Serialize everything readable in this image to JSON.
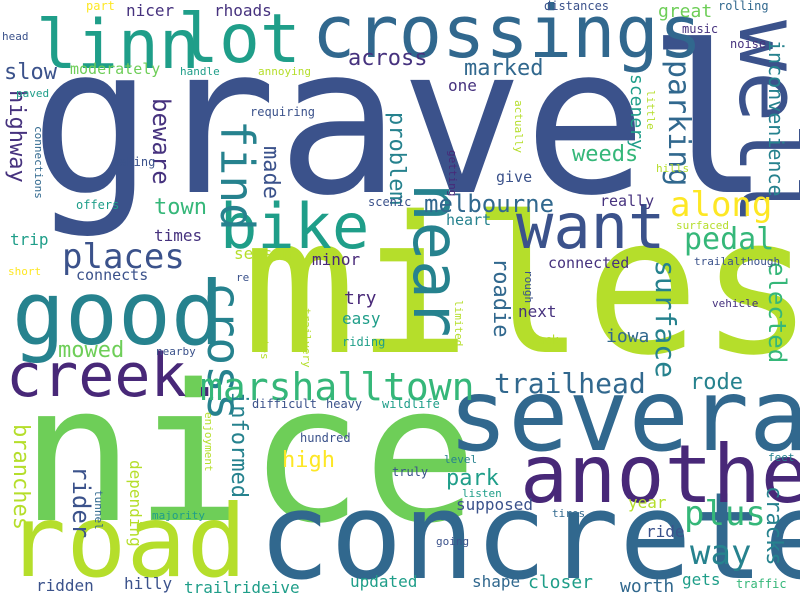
{
  "background": "#ffffff",
  "palette": {
    "navy": "#3b528b",
    "purple": "#482878",
    "dpurple": "#46327e",
    "blue": "#31688e",
    "teal": "#26828e",
    "tealgreen": "#1f9e89",
    "green": "#35b779",
    "lgreen": "#6ece58",
    "yellowgreen": "#b5de2b",
    "yellow": "#fde725"
  },
  "words": [
    {
      "id": "gravel",
      "text": "gravel",
      "color": "navy"
    },
    {
      "id": "miles",
      "text": "miles",
      "color": "yellowgreen"
    },
    {
      "id": "nice",
      "text": "nice",
      "color": "lgreen"
    },
    {
      "id": "concrete",
      "text": "concrete",
      "color": "blue"
    },
    {
      "id": "road",
      "text": "road",
      "color": "yellowgreen"
    },
    {
      "id": "several",
      "text": "several",
      "color": "blue"
    },
    {
      "id": "another",
      "text": "another",
      "color": "purple"
    },
    {
      "id": "good",
      "text": "good",
      "color": "teal"
    },
    {
      "id": "crossings",
      "text": "crossings",
      "color": "blue"
    },
    {
      "id": "linn",
      "text": "linn",
      "color": "tealgreen"
    },
    {
      "id": "lot",
      "text": "lot",
      "color": "tealgreen"
    },
    {
      "id": "well",
      "text": "well",
      "color": "navy"
    },
    {
      "id": "creek",
      "text": "creek.",
      "color": "purple"
    },
    {
      "id": "bike",
      "text": "bike",
      "color": "tealgreen"
    },
    {
      "id": "want",
      "text": "want",
      "color": "navy"
    },
    {
      "id": "near",
      "text": "near",
      "color": "teal"
    },
    {
      "id": "find",
      "text": "find",
      "color": "teal"
    },
    {
      "id": "cross",
      "text": "cross",
      "color": "teal"
    },
    {
      "id": "marshalltown",
      "text": "marshalltown",
      "color": "green"
    },
    {
      "id": "places",
      "text": "places",
      "color": "navy"
    },
    {
      "id": "along",
      "text": "along",
      "color": "yellow"
    },
    {
      "id": "pedal",
      "text": "pedal",
      "color": "green"
    },
    {
      "id": "plus",
      "text": "plus",
      "color": "green"
    },
    {
      "id": "way",
      "text": "way",
      "color": "teal"
    },
    {
      "id": "parking",
      "text": "parking",
      "color": "blue"
    },
    {
      "id": "surface",
      "text": "surface",
      "color": "teal"
    },
    {
      "id": "trailhead",
      "text": "trailhead",
      "color": "blue"
    },
    {
      "id": "melbourne",
      "text": "melbourne",
      "color": "blue"
    },
    {
      "id": "elected",
      "text": "elected",
      "color": "green"
    },
    {
      "id": "inconvenience",
      "text": "inconvenience",
      "color": "teal"
    },
    {
      "id": "highway",
      "text": "highway",
      "color": "dpurple"
    },
    {
      "id": "beware",
      "text": "beware",
      "color": "dpurple"
    },
    {
      "id": "rider",
      "text": "rider",
      "color": "navy"
    },
    {
      "id": "informed",
      "text": "informed",
      "color": "teal"
    },
    {
      "id": "branches",
      "text": "branches",
      "color": "yellowgreen"
    },
    {
      "id": "across",
      "text": "across",
      "color": "dpurple"
    },
    {
      "id": "marked",
      "text": "marked",
      "color": "blue"
    },
    {
      "id": "slow",
      "text": "slow",
      "color": "navy"
    },
    {
      "id": "weeds",
      "text": "weeds",
      "color": "green"
    },
    {
      "id": "problem",
      "text": "problem",
      "color": "teal"
    },
    {
      "id": "made",
      "text": "made",
      "color": "navy"
    },
    {
      "id": "roadie",
      "text": "roadie",
      "color": "blue"
    },
    {
      "id": "mowed",
      "text": "mowed",
      "color": "lgreen"
    },
    {
      "id": "high",
      "text": "high",
      "color": "yellow"
    },
    {
      "id": "park",
      "text": "park",
      "color": "tealgreen"
    },
    {
      "id": "rode",
      "text": "rode",
      "color": "teal"
    },
    {
      "id": "cracks",
      "text": "cracks",
      "color": "teal"
    },
    {
      "id": "town",
      "text": "town",
      "color": "green"
    },
    {
      "id": "scenery",
      "text": "scenery",
      "color": "tealgreen"
    },
    {
      "id": "great",
      "text": "great",
      "color": "lgreen"
    },
    {
      "id": "iowa",
      "text": "iowa",
      "color": "blue"
    },
    {
      "id": "nicer",
      "text": "nicer",
      "color": "dpurple"
    },
    {
      "id": "rhoads",
      "text": "rhoads",
      "color": "dpurple"
    },
    {
      "id": "moderately",
      "text": "moderately",
      "color": "lgreen"
    },
    {
      "id": "one",
      "text": "one",
      "color": "dpurple"
    },
    {
      "id": "times",
      "text": "times",
      "color": "dpurple"
    },
    {
      "id": "trip",
      "text": "trip",
      "color": "tealgreen"
    },
    {
      "id": "season",
      "text": "season",
      "color": "yellowgreen"
    },
    {
      "id": "minor",
      "text": "minor",
      "color": "purple"
    },
    {
      "id": "try",
      "text": "try",
      "color": "purple"
    },
    {
      "id": "easy",
      "text": "easy",
      "color": "tealgreen"
    },
    {
      "id": "next",
      "text": "next",
      "color": "dpurple"
    },
    {
      "id": "connected",
      "text": "connected",
      "color": "dpurple"
    },
    {
      "id": "really",
      "text": "really",
      "color": "dpurple"
    },
    {
      "id": "give",
      "text": "give",
      "color": "navy"
    },
    {
      "id": "heart",
      "text": "heart",
      "color": "teal"
    },
    {
      "id": "connects",
      "text": "connects",
      "color": "navy"
    },
    {
      "id": "ridden",
      "text": "ridden",
      "color": "navy"
    },
    {
      "id": "hilly",
      "text": "hilly",
      "color": "navy"
    },
    {
      "id": "trailrideive",
      "text": "trailrideive",
      "color": "tealgreen"
    },
    {
      "id": "updated",
      "text": "updated",
      "color": "tealgreen"
    },
    {
      "id": "shape",
      "text": "shape",
      "color": "blue"
    },
    {
      "id": "closer",
      "text": "closer",
      "color": "tealgreen"
    },
    {
      "id": "worth",
      "text": "worth",
      "color": "blue"
    },
    {
      "id": "gets",
      "text": "gets",
      "color": "tealgreen"
    },
    {
      "id": "supposed",
      "text": "supposed",
      "color": "navy"
    },
    {
      "id": "depending",
      "text": "depending",
      "color": "yellowgreen"
    },
    {
      "id": "year",
      "text": "year",
      "color": "yellowgreen"
    },
    {
      "id": "ride",
      "text": "ride",
      "color": "navy"
    },
    {
      "id": "part",
      "text": "part",
      "color": "yellow"
    },
    {
      "id": "distances",
      "text": "distances",
      "color": "navy"
    },
    {
      "id": "rolling",
      "text": "rolling",
      "color": "blue"
    },
    {
      "id": "music",
      "text": "music",
      "color": "dpurple"
    },
    {
      "id": "head",
      "text": "head",
      "color": "navy"
    },
    {
      "id": "noise",
      "text": "noise",
      "color": "dpurple"
    },
    {
      "id": "handle",
      "text": "handle",
      "color": "tealgreen"
    },
    {
      "id": "annoying",
      "text": "annoying",
      "color": "yellowgreen"
    },
    {
      "id": "paved",
      "text": "paved",
      "color": "tealgreen"
    },
    {
      "id": "little",
      "text": "little",
      "color": "yellowgreen"
    },
    {
      "id": "requiring",
      "text": "requiring",
      "color": "navy"
    },
    {
      "id": "actually",
      "text": "actually",
      "color": "yellowgreen"
    },
    {
      "id": "making",
      "text": "making",
      "color": "navy"
    },
    {
      "id": "getting",
      "text": "getting",
      "color": "purple"
    },
    {
      "id": "hills",
      "text": "hills",
      "color": "yellowgreen"
    },
    {
      "id": "connections",
      "text": "connections",
      "color": "blue"
    },
    {
      "id": "offers",
      "text": "offers",
      "color": "tealgreen"
    },
    {
      "id": "scenic",
      "text": "scenic",
      "color": "navy"
    },
    {
      "id": "surfaced",
      "text": "surfaced",
      "color": "yellowgreen"
    },
    {
      "id": "trailalthough",
      "text": "trailalthough",
      "color": "navy"
    },
    {
      "id": "short",
      "text": "short",
      "color": "yellow"
    },
    {
      "id": "re",
      "text": "re",
      "color": "navy"
    },
    {
      "id": "rough",
      "text": "rough",
      "color": "navy"
    },
    {
      "id": "vehicle",
      "text": "vehicle",
      "color": "dpurple"
    },
    {
      "id": "generates",
      "text": "generates",
      "color": "yellowgreen"
    },
    {
      "id": "trailvery",
      "text": "trailvery",
      "color": "yellowgreen"
    },
    {
      "id": "limited",
      "text": "limited",
      "color": "yellowgreen"
    },
    {
      "id": "riding",
      "text": "riding",
      "color": "tealgreen"
    },
    {
      "id": "rack",
      "text": "rack",
      "color": "yellowgreen"
    },
    {
      "id": "nearby",
      "text": "nearby",
      "color": "navy"
    },
    {
      "id": "difficult",
      "text": "difficult",
      "color": "navy"
    },
    {
      "id": "heavy",
      "text": "heavy",
      "color": "navy"
    },
    {
      "id": "wildlife",
      "text": "wildlife",
      "color": "tealgreen"
    },
    {
      "id": "enjoyment",
      "text": "enjoyment",
      "color": "yellowgreen"
    },
    {
      "id": "hundred",
      "text": "hundred",
      "color": "navy"
    },
    {
      "id": "truly",
      "text": "truly",
      "color": "navy"
    },
    {
      "id": "level",
      "text": "level",
      "color": "teal"
    },
    {
      "id": "listen",
      "text": "listen",
      "color": "tealgreen"
    },
    {
      "id": "feet",
      "text": "feet",
      "color": "teal"
    },
    {
      "id": "tunnel",
      "text": "tunnel",
      "color": "blue"
    },
    {
      "id": "majority",
      "text": "majority",
      "color": "tealgreen"
    },
    {
      "id": "tires",
      "text": "tires",
      "color": "blue"
    },
    {
      "id": "going",
      "text": "going",
      "color": "navy"
    },
    {
      "id": "traffic",
      "text": "traffic",
      "color": "green"
    }
  ]
}
